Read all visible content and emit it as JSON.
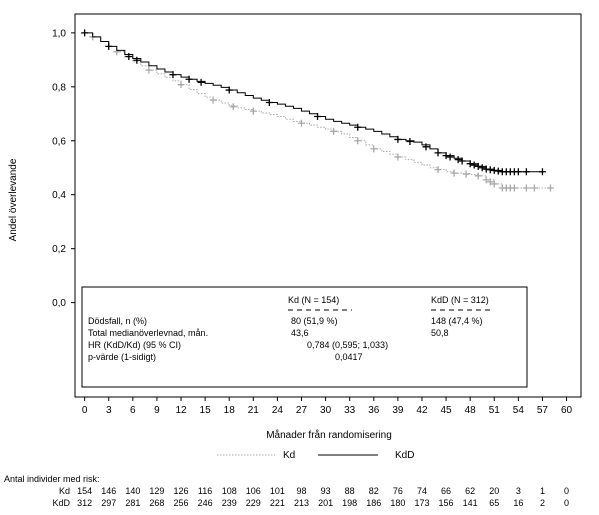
{
  "chart_data": {
    "type": "line",
    "title": "",
    "xlabel": "Månader från randomisering",
    "ylabel": "Andel överlevande",
    "xlim": [
      -1.2,
      61.8
    ],
    "ylim": [
      -0.35,
      1.07
    ],
    "x_ticks": [
      0,
      3,
      6,
      9,
      12,
      15,
      18,
      21,
      24,
      27,
      30,
      33,
      36,
      39,
      42,
      45,
      48,
      51,
      54,
      57,
      60
    ],
    "y_ticks": [
      0.0,
      0.2,
      0.4,
      0.6,
      0.8,
      1.0
    ],
    "y_tick_labels": [
      "0,0",
      "0,2",
      "0,4",
      "0,6",
      "0,8",
      "1,0"
    ],
    "grid": false,
    "legend_position": "bottom",
    "series": [
      {
        "name": "Kd",
        "color": "#a8a8a8",
        "style": "dotted",
        "x": [
          0,
          1,
          2,
          3,
          4,
          5,
          6,
          7,
          8,
          9,
          10,
          11,
          12,
          13,
          14,
          15,
          16,
          17,
          18,
          19,
          20,
          21,
          22,
          23,
          24,
          25,
          26,
          27,
          28,
          29,
          30,
          31,
          32,
          33,
          34,
          35,
          36,
          37,
          38,
          39,
          40,
          41,
          42,
          43,
          44,
          45,
          46,
          47,
          48,
          49,
          50,
          51,
          52,
          53,
          54,
          55,
          56,
          57,
          58
        ],
        "y": [
          1.0,
          0.985,
          0.968,
          0.95,
          0.93,
          0.91,
          0.893,
          0.878,
          0.862,
          0.848,
          0.835,
          0.822,
          0.808,
          0.79,
          0.775,
          0.762,
          0.751,
          0.74,
          0.73,
          0.722,
          0.716,
          0.71,
          0.703,
          0.697,
          0.69,
          0.68,
          0.672,
          0.665,
          0.658,
          0.65,
          0.643,
          0.635,
          0.625,
          0.612,
          0.6,
          0.585,
          0.57,
          0.56,
          0.55,
          0.54,
          0.53,
          0.52,
          0.51,
          0.5,
          0.493,
          0.485,
          0.48,
          0.478,
          0.475,
          0.47,
          0.455,
          0.44,
          0.425,
          0.425,
          0.425,
          0.425,
          0.425,
          0.425,
          0.425
        ],
        "censor_x": [
          1,
          4,
          8,
          12,
          16,
          18.5,
          21,
          27,
          31,
          34,
          36,
          39,
          44,
          46,
          47.5,
          49,
          50,
          50.5,
          51,
          52,
          52.5,
          53,
          53.5,
          55,
          56,
          58
        ]
      },
      {
        "name": "KdD",
        "color": "#000000",
        "style": "solid",
        "x": [
          0,
          1,
          2,
          3,
          4,
          5,
          6,
          7,
          8,
          9,
          10,
          11,
          12,
          13,
          14,
          15,
          16,
          17,
          18,
          19,
          20,
          21,
          22,
          23,
          24,
          25,
          26,
          27,
          28,
          29,
          30,
          31,
          32,
          33,
          34,
          35,
          36,
          37,
          38,
          39,
          40,
          41,
          42,
          43,
          44,
          45,
          46,
          47,
          48,
          49,
          50,
          51,
          52,
          53,
          54,
          55,
          56,
          57
        ],
        "y": [
          1.0,
          0.985,
          0.968,
          0.95,
          0.935,
          0.92,
          0.905,
          0.892,
          0.878,
          0.866,
          0.855,
          0.845,
          0.836,
          0.828,
          0.82,
          0.813,
          0.806,
          0.798,
          0.788,
          0.778,
          0.768,
          0.758,
          0.75,
          0.742,
          0.736,
          0.728,
          0.72,
          0.71,
          0.7,
          0.69,
          0.68,
          0.672,
          0.665,
          0.658,
          0.65,
          0.643,
          0.635,
          0.625,
          0.615,
          0.605,
          0.6,
          0.595,
          0.585,
          0.57,
          0.555,
          0.545,
          0.535,
          0.525,
          0.515,
          0.505,
          0.495,
          0.49,
          0.485,
          0.485,
          0.485,
          0.485,
          0.485,
          0.485
        ],
        "censor_x": [
          0,
          3,
          5.5,
          6.5,
          11,
          13,
          14.5,
          18,
          23,
          29,
          34,
          39,
          40.5,
          42.5,
          44,
          45,
          45.5,
          46.5,
          47,
          48,
          48.5,
          49,
          49.5,
          50,
          50.5,
          51,
          51.5,
          52,
          52.5,
          53,
          53.5,
          54,
          55,
          57
        ]
      }
    ],
    "summary_box": {
      "col_headers": [
        "Kd (N = 154)",
        "KdD (N = 312)"
      ],
      "rows": [
        {
          "label": "Dödsfall, n (%)",
          "kd": "80 (51,9 %)",
          "kdd": "148 (47,4 %)"
        },
        {
          "label": "Total medianöverlevnad, mån.",
          "kd": "43,6",
          "kdd": "50,8"
        },
        {
          "label": "HR (KdD/Kd) (95 % CI)",
          "value": "0,784 (0,595; 1,033)"
        },
        {
          "label": "p-värde (1-sidigt)",
          "value": "0,0417"
        }
      ]
    },
    "legend_entries": [
      "Kd",
      "KdD"
    ],
    "risk_table": {
      "title": "Antal individer med risk:",
      "rows": [
        {
          "label": "Kd",
          "values": [
            154,
            146,
            140,
            129,
            126,
            116,
            108,
            106,
            101,
            98,
            93,
            88,
            82,
            76,
            74,
            66,
            62,
            20,
            3,
            1,
            0
          ]
        },
        {
          "label": "KdD",
          "values": [
            312,
            297,
            281,
            268,
            256,
            246,
            239,
            229,
            221,
            213,
            201,
            198,
            186,
            180,
            173,
            156,
            141,
            65,
            16,
            2,
            0
          ]
        }
      ]
    }
  }
}
